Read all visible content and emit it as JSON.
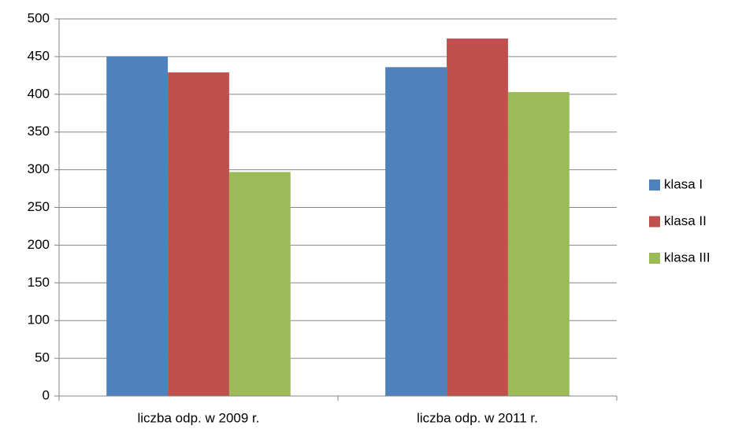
{
  "chart_data": {
    "type": "bar",
    "categories": [
      "liczba odp. w 2009 r.",
      "liczba odp. w 2011 r."
    ],
    "series": [
      {
        "name": "klasa I",
        "color": "#4f81bd",
        "values": [
          450,
          436
        ]
      },
      {
        "name": "klasa II",
        "color": "#c0504d",
        "values": [
          429,
          474
        ]
      },
      {
        "name": "klasa III",
        "color": "#9bbb59",
        "values": [
          297,
          403
        ]
      }
    ],
    "ylim": [
      0,
      500
    ],
    "yticks": [
      0,
      50,
      100,
      150,
      200,
      250,
      300,
      350,
      400,
      450,
      500
    ],
    "grid": true,
    "legend": "right"
  }
}
